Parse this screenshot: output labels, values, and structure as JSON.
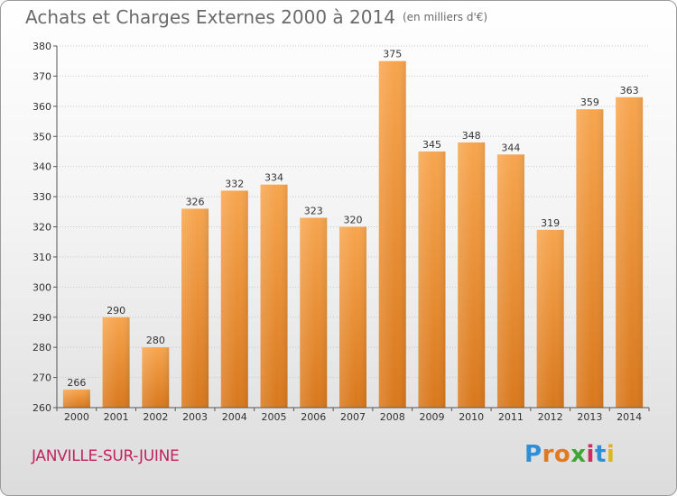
{
  "title": "Achats et Charges Externes 2000 à 2014",
  "unit": "(en milliers d'€)",
  "commune": "JANVILLE-SUR-JUINE",
  "logo": {
    "letters": [
      "P",
      "r",
      "o",
      "x",
      "i",
      "t",
      "i"
    ],
    "colors": [
      "#2f8fd6",
      "#e07a1f",
      "#e07a1f",
      "#3fa535",
      "#d22b62",
      "#2f8fd6",
      "#e0b41f"
    ]
  },
  "colors": {
    "bar_top": "#f7a54e",
    "bar_bottom": "#d9781c",
    "grid": "#c8c8c8",
    "title": "#6a6a6a",
    "commune": "#c0245e"
  },
  "chart_data": {
    "type": "bar",
    "title": "Achats et Charges Externes 2000 à 2014",
    "subtitle": "(en milliers d'€)",
    "categories": [
      "2000",
      "2001",
      "2002",
      "2003",
      "2004",
      "2005",
      "2006",
      "2007",
      "2008",
      "2009",
      "2010",
      "2011",
      "2012",
      "2013",
      "2014"
    ],
    "values": [
      266,
      290,
      280,
      326,
      332,
      334,
      323,
      320,
      375,
      345,
      348,
      344,
      319,
      359,
      363
    ],
    "ylim": [
      260,
      380
    ],
    "yticks": [
      260,
      270,
      280,
      290,
      300,
      310,
      320,
      330,
      340,
      350,
      360,
      370,
      380
    ],
    "xlabel": "",
    "ylabel": "",
    "grid": true,
    "data_labels": true
  }
}
